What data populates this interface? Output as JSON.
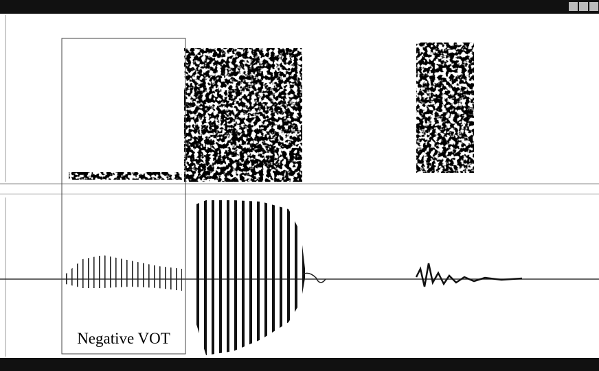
{
  "annotation": {
    "label": "Negative VOT"
  }
}
